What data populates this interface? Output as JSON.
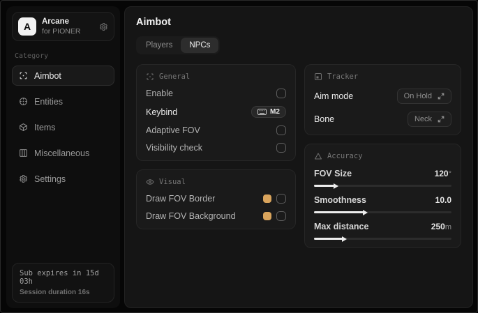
{
  "colors": {
    "accent": "#d9a45c"
  },
  "app": {
    "logo_letter": "A",
    "name": "Arcane",
    "subtitle": "for PIONER"
  },
  "sidebar": {
    "category_label": "Category",
    "items": [
      {
        "label": "Aimbot"
      },
      {
        "label": "Entities"
      },
      {
        "label": "Items"
      },
      {
        "label": "Miscellaneous"
      },
      {
        "label": "Settings"
      }
    ],
    "footer": {
      "line1": "Sub expires in 15d 03h",
      "line2": "Session duration 16s"
    }
  },
  "main": {
    "title": "Aimbot",
    "tabs": [
      {
        "label": "Players"
      },
      {
        "label": "NPCs"
      }
    ],
    "general": {
      "title": "General",
      "rows": [
        {
          "label": "Enable",
          "checked": false
        },
        {
          "label": "Keybind",
          "value": "M2"
        },
        {
          "label": "Adaptive FOV",
          "checked": false
        },
        {
          "label": "Visibility check",
          "checked": false
        }
      ]
    },
    "visual": {
      "title": "Visual",
      "rows": [
        {
          "label": "Draw FOV Border",
          "color": "#d9a45c",
          "checked": false
        },
        {
          "label": "Draw FOV Background",
          "color": "#d9a45c",
          "checked": false
        }
      ]
    },
    "tracker": {
      "title": "Tracker",
      "rows": [
        {
          "label": "Aim mode",
          "value": "On Hold"
        },
        {
          "label": "Bone",
          "value": "Neck"
        }
      ]
    },
    "accuracy": {
      "title": "Accuracy",
      "sliders": [
        {
          "label": "FOV Size",
          "value": "120",
          "unit": "°",
          "percent": 15
        },
        {
          "label": "Smoothness",
          "value": "10.0",
          "unit": "",
          "percent": 36
        },
        {
          "label": "Max distance",
          "value": "250",
          "unit": "m",
          "percent": 21
        }
      ]
    }
  }
}
